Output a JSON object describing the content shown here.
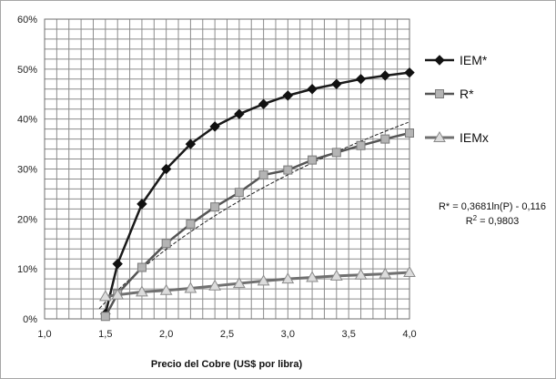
{
  "chart_data": {
    "type": "line",
    "title": "",
    "xlabel": "Precio del Cobre (US$ por libra)",
    "ylabel": "",
    "xlim": [
      1.0,
      4.0
    ],
    "ylim": [
      0,
      0.6
    ],
    "grid": true,
    "legend_position": "right",
    "x_ticks": [
      "1,0",
      "1,5",
      "2,0",
      "2,5",
      "3,0",
      "3,5",
      "4,0"
    ],
    "y_ticks": [
      "0%",
      "10%",
      "20%",
      "30%",
      "40%",
      "50%",
      "60%"
    ],
    "series": [
      {
        "name": "IEM*",
        "marker": "diamond",
        "color": "#1a1a1a",
        "x": [
          1.5,
          1.6,
          1.8,
          2.0,
          2.2,
          2.4,
          2.6,
          2.8,
          3.0,
          3.2,
          3.4,
          3.6,
          3.8,
          4.0
        ],
        "values": [
          0.01,
          0.11,
          0.23,
          0.3,
          0.35,
          0.385,
          0.41,
          0.43,
          0.447,
          0.46,
          0.47,
          0.48,
          0.487,
          0.493
        ]
      },
      {
        "name": "R*",
        "marker": "square",
        "color": "#555555",
        "x": [
          1.5,
          1.6,
          1.8,
          2.0,
          2.2,
          2.4,
          2.6,
          2.8,
          3.0,
          3.2,
          3.4,
          3.6,
          3.8,
          4.0
        ],
        "values": [
          0.005,
          0.05,
          0.103,
          0.151,
          0.19,
          0.224,
          0.253,
          0.288,
          0.298,
          0.318,
          0.333,
          0.347,
          0.36,
          0.372
        ]
      },
      {
        "name": "IEMx",
        "marker": "triangle",
        "color": "#707070",
        "x": [
          1.5,
          1.6,
          1.8,
          2.0,
          2.2,
          2.4,
          2.6,
          2.8,
          3.0,
          3.2,
          3.4,
          3.6,
          3.8,
          4.0
        ],
        "values": [
          0.045,
          0.048,
          0.054,
          0.057,
          0.061,
          0.066,
          0.071,
          0.076,
          0.08,
          0.083,
          0.086,
          0.088,
          0.09,
          0.093
        ]
      }
    ],
    "trendline": {
      "series": "R*",
      "style": "dashed",
      "equation": "R* = 0,3681ln(P) - 0,116",
      "r2_base": "R",
      "r2_sup": "2",
      "r2_value": " = 0,9803",
      "a": 0.3681,
      "b": -0.116
    }
  }
}
